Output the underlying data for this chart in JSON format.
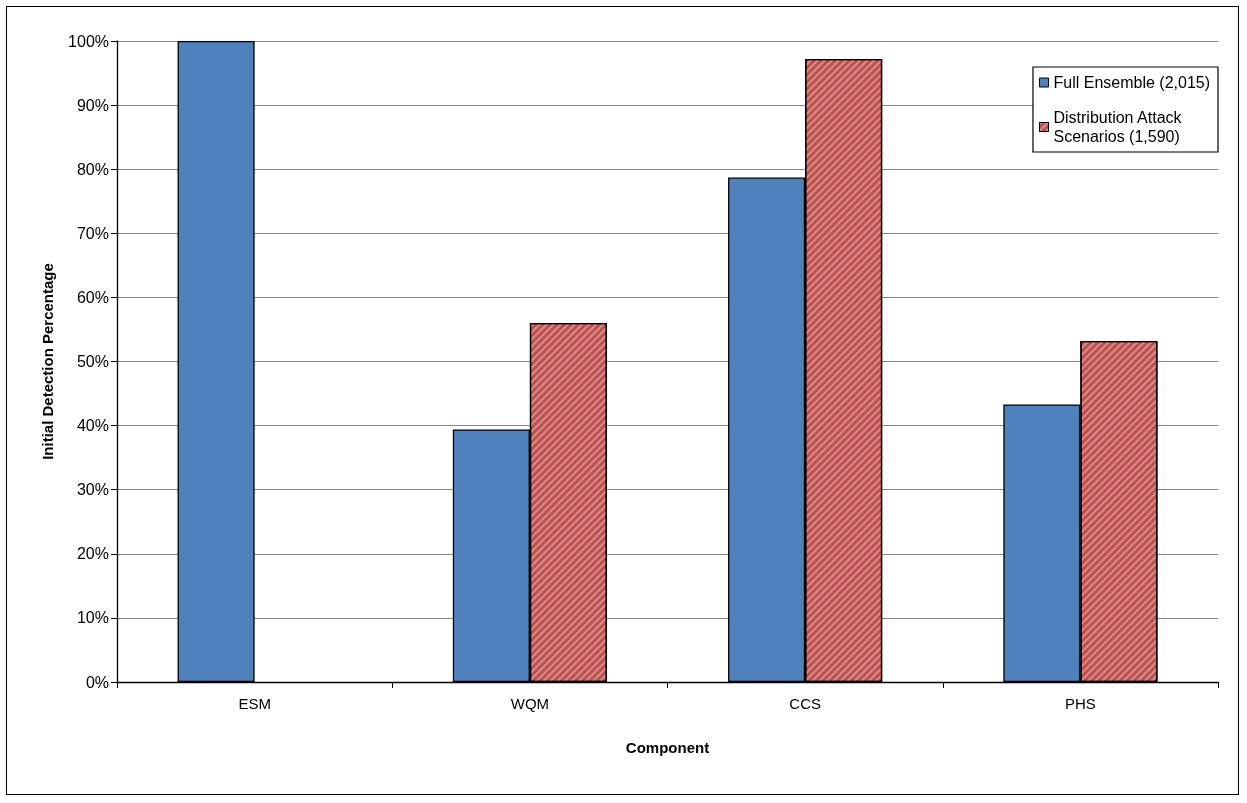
{
  "chart_data": {
    "type": "bar",
    "xlabel": "Component",
    "ylabel": "Initial Detection Percentage",
    "categories": [
      "ESM",
      "WQM",
      "CCS",
      "PHS"
    ],
    "series": [
      {
        "name": "Full Ensemble (2,015)",
        "color": "#4f81bd",
        "values": [
          100,
          39.4,
          78.7,
          43.3
        ]
      },
      {
        "name": "Distribution Attack\nScenarios (1,590)",
        "color": "#c0504d",
        "values": [
          null,
          56.0,
          97.2,
          53.2
        ]
      }
    ],
    "ylim": [
      0,
      100
    ],
    "yticks": [
      {
        "value": 0,
        "label": "0%"
      },
      {
        "value": 10,
        "label": "10%"
      },
      {
        "value": 20,
        "label": "20%"
      },
      {
        "value": 30,
        "label": "30%"
      },
      {
        "value": 40,
        "label": "40%"
      },
      {
        "value": 50,
        "label": "50%"
      },
      {
        "value": 60,
        "label": "60%"
      },
      {
        "value": 70,
        "label": "70%"
      },
      {
        "value": 80,
        "label": "80%"
      },
      {
        "value": 90,
        "label": "90%"
      },
      {
        "value": 100,
        "label": "100%"
      }
    ],
    "grid": "y",
    "legend": "top right"
  }
}
